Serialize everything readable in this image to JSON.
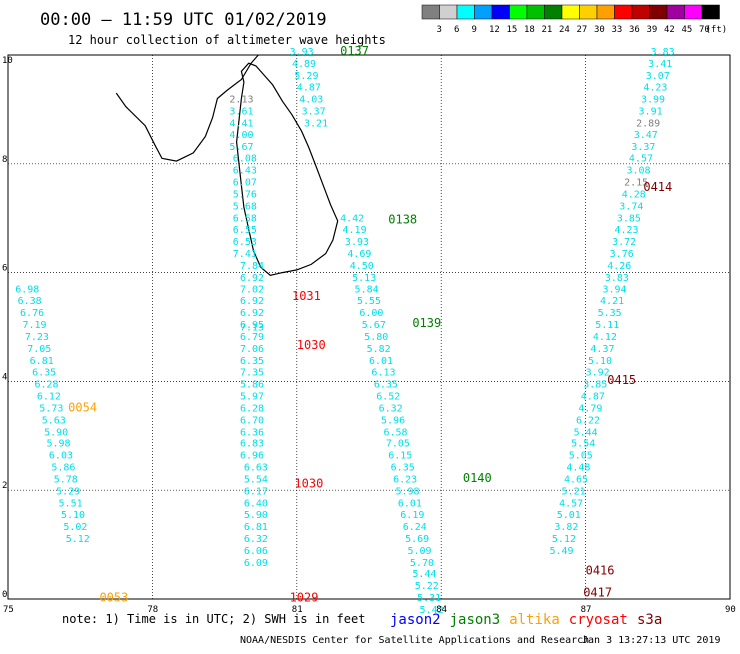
{
  "header": {
    "title": "00:00 – 11:59 UTC 01/02/2019",
    "subtitle": "12 hour collection of altimeter wave heights"
  },
  "color_scale": {
    "unit": "(ft)",
    "bins": [
      {
        "label": "",
        "color": "#808080"
      },
      {
        "label": "3",
        "color": "#d0d0d0"
      },
      {
        "label": "6",
        "color": "#00ffff"
      },
      {
        "label": "9",
        "color": "#00a0ff"
      },
      {
        "label": "12",
        "color": "#0000ff"
      },
      {
        "label": "15",
        "color": "#00ff00"
      },
      {
        "label": "18",
        "color": "#00c000"
      },
      {
        "label": "21",
        "color": "#008000"
      },
      {
        "label": "24",
        "color": "#ffff00"
      },
      {
        "label": "27",
        "color": "#ffd000"
      },
      {
        "label": "30",
        "color": "#ffa000"
      },
      {
        "label": "33",
        "color": "#ff0000"
      },
      {
        "label": "36",
        "color": "#c00000"
      },
      {
        "label": "39",
        "color": "#800000"
      },
      {
        "label": "42",
        "color": "#a000a0"
      },
      {
        "label": "45",
        "color": "#ff00ff"
      },
      {
        "label": "70",
        "color": "#000000"
      }
    ]
  },
  "axes": {
    "x_ticks": [
      "75",
      "78",
      "81",
      "84",
      "87",
      "90"
    ],
    "y_ticks": [
      "0",
      "2",
      "4",
      "6",
      "8",
      "10"
    ],
    "lon_range": [
      75,
      90
    ],
    "lat_range": [
      0,
      10
    ]
  },
  "colors": {
    "cyan": "#00e0e8",
    "grey": "#808080",
    "jason2": "#0000ff",
    "jason3": "#008000",
    "altika": "#ffa000",
    "cryosat": "#ff0000",
    "s3a": "#800000"
  },
  "passes": [
    {
      "label": "0137",
      "lon": 81.9,
      "lat": 10.0,
      "sat": "jason3"
    },
    {
      "label": "0138",
      "lon": 82.9,
      "lat": 6.9,
      "sat": "jason3"
    },
    {
      "label": "0139",
      "lon": 83.4,
      "lat": 5.0,
      "sat": "jason3"
    },
    {
      "label": "0140",
      "lon": 84.45,
      "lat": 2.15,
      "sat": "jason3"
    },
    {
      "label": "1031",
      "lon": 80.9,
      "lat": 5.5,
      "sat": "cryosat"
    },
    {
      "label": "1030",
      "lon": 81.0,
      "lat": 4.6,
      "sat": "cryosat"
    },
    {
      "label": "1030",
      "lon": 80.95,
      "lat": 2.05,
      "sat": "cryosat"
    },
    {
      "label": "1029",
      "lon": 80.85,
      "lat": -0.05,
      "sat": "cryosat"
    },
    {
      "label": "0054",
      "lon": 76.25,
      "lat": 3.45,
      "sat": "altika"
    },
    {
      "label": "0053",
      "lon": 76.9,
      "lat": -0.05,
      "sat": "altika"
    },
    {
      "label": "0414",
      "lon": 88.2,
      "lat": 7.5,
      "sat": "s3a"
    },
    {
      "label": "0415",
      "lon": 87.45,
      "lat": 3.95,
      "sat": "s3a"
    },
    {
      "label": "0416",
      "lon": 87.0,
      "lat": 0.45,
      "sat": "s3a"
    },
    {
      "label": "0417",
      "lon": 86.95,
      "lat": 0.05,
      "sat": "s3a"
    }
  ],
  "tracks": [
    {
      "name": "track-0137",
      "values": [
        {
          "v": "3.93",
          "lon": 80.85,
          "lat": 10.0
        },
        {
          "v": "4.89",
          "lon": 80.9,
          "lat": 9.78
        },
        {
          "v": "5.29",
          "lon": 80.95,
          "lat": 9.56
        },
        {
          "v": "4.87",
          "lon": 81.0,
          "lat": 9.35
        },
        {
          "v": "4.03",
          "lon": 81.05,
          "lat": 9.13
        },
        {
          "v": "3.37",
          "lon": 81.1,
          "lat": 8.91
        },
        {
          "v": "3.21",
          "lon": 81.15,
          "lat": 8.69
        }
      ]
    },
    {
      "name": "track-1030-north",
      "values": [
        {
          "v": "2.13",
          "lon": 79.6,
          "lat": 9.13,
          "c": "grey"
        },
        {
          "v": "3.61",
          "lon": 79.6,
          "lat": 8.91
        },
        {
          "v": "4.41",
          "lon": 79.6,
          "lat": 8.69
        },
        {
          "v": "4.00",
          "lon": 79.6,
          "lat": 8.47
        },
        {
          "v": "5.67",
          "lon": 79.6,
          "lat": 8.25
        },
        {
          "v": "6.08",
          "lon": 79.67,
          "lat": 8.04
        },
        {
          "v": "6.43",
          "lon": 79.67,
          "lat": 7.82
        },
        {
          "v": "6.07",
          "lon": 79.67,
          "lat": 7.6
        },
        {
          "v": "5.76",
          "lon": 79.67,
          "lat": 7.38
        },
        {
          "v": "5.68",
          "lon": 79.67,
          "lat": 7.16
        },
        {
          "v": "6.58",
          "lon": 79.67,
          "lat": 6.94
        },
        {
          "v": "6.55",
          "lon": 79.67,
          "lat": 6.73
        },
        {
          "v": "6.53",
          "lon": 79.67,
          "lat": 6.51
        },
        {
          "v": "7.41",
          "lon": 79.67,
          "lat": 6.29
        },
        {
          "v": "7.84",
          "lon": 79.82,
          "lat": 6.07
        },
        {
          "v": "6.92",
          "lon": 79.82,
          "lat": 5.85
        },
        {
          "v": "7.02",
          "lon": 79.82,
          "lat": 5.63
        },
        {
          "v": "6.92",
          "lon": 79.82,
          "lat": 5.42
        },
        {
          "v": "6.92",
          "lon": 79.82,
          "lat": 5.2
        },
        {
          "v": "6.95",
          "lon": 79.82,
          "lat": 4.98
        },
        {
          "v": "7.13",
          "lon": 79.82,
          "lat": 4.94
        },
        {
          "v": "6.79",
          "lon": 79.82,
          "lat": 4.76
        },
        {
          "v": "7.06",
          "lon": 79.82,
          "lat": 4.54
        },
        {
          "v": "6.35",
          "lon": 79.82,
          "lat": 4.32
        },
        {
          "v": "7.35",
          "lon": 79.82,
          "lat": 4.11
        },
        {
          "v": "5.86",
          "lon": 79.82,
          "lat": 3.89
        },
        {
          "v": "5.97",
          "lon": 79.82,
          "lat": 3.67
        },
        {
          "v": "6.28",
          "lon": 79.82,
          "lat": 3.45
        },
        {
          "v": "6.70",
          "lon": 79.82,
          "lat": 3.23
        },
        {
          "v": "6.36",
          "lon": 79.82,
          "lat": 3.01
        },
        {
          "v": "6.83",
          "lon": 79.82,
          "lat": 2.8
        },
        {
          "v": "6.96",
          "lon": 79.82,
          "lat": 2.58
        },
        {
          "v": "6.63",
          "lon": 79.9,
          "lat": 2.36
        },
        {
          "v": "5.54",
          "lon": 79.9,
          "lat": 2.14
        },
        {
          "v": "6.17",
          "lon": 79.9,
          "lat": 1.92
        },
        {
          "v": "6.40",
          "lon": 79.9,
          "lat": 1.7
        },
        {
          "v": "5.90",
          "lon": 79.9,
          "lat": 1.49
        },
        {
          "v": "6.81",
          "lon": 79.9,
          "lat": 1.27
        },
        {
          "v": "6.32",
          "lon": 79.9,
          "lat": 1.05
        },
        {
          "v": "6.06",
          "lon": 79.9,
          "lat": 0.83
        },
        {
          "v": "6.09",
          "lon": 79.9,
          "lat": 0.61
        }
      ]
    },
    {
      "name": "track-0054",
      "values": [
        {
          "v": "6.98",
          "lon": 75.15,
          "lat": 5.63
        },
        {
          "v": "6.38",
          "lon": 75.2,
          "lat": 5.42
        },
        {
          "v": "6.76",
          "lon": 75.25,
          "lat": 5.2
        },
        {
          "v": "7.19",
          "lon": 75.3,
          "lat": 4.98
        },
        {
          "v": "7.23",
          "lon": 75.35,
          "lat": 4.76
        },
        {
          "v": "7.05",
          "lon": 75.4,
          "lat": 4.54
        },
        {
          "v": "6.81",
          "lon": 75.45,
          "lat": 4.32
        },
        {
          "v": "6.35",
          "lon": 75.5,
          "lat": 4.11
        },
        {
          "v": "6.28",
          "lon": 75.55,
          "lat": 3.89
        },
        {
          "v": "6.12",
          "lon": 75.6,
          "lat": 3.67
        },
        {
          "v": "5.73",
          "lon": 75.65,
          "lat": 3.45
        },
        {
          "v": "5.63",
          "lon": 75.7,
          "lat": 3.23
        },
        {
          "v": "5.90",
          "lon": 75.75,
          "lat": 3.01
        },
        {
          "v": "5.98",
          "lon": 75.8,
          "lat": 2.8
        },
        {
          "v": "6.03",
          "lon": 75.85,
          "lat": 2.58
        },
        {
          "v": "5.86",
          "lon": 75.9,
          "lat": 2.36
        },
        {
          "v": "5.78",
          "lon": 75.95,
          "lat": 2.14
        },
        {
          "v": "5.29",
          "lon": 76.0,
          "lat": 1.92
        },
        {
          "v": "5.51",
          "lon": 76.05,
          "lat": 1.7
        },
        {
          "v": "5.10",
          "lon": 76.1,
          "lat": 1.49
        },
        {
          "v": "5.02",
          "lon": 76.15,
          "lat": 1.27
        },
        {
          "v": "5.12",
          "lon": 76.2,
          "lat": 1.05
        }
      ]
    },
    {
      "name": "track-0138-0140",
      "values": [
        {
          "v": "4.42",
          "lon": 81.9,
          "lat": 6.94
        },
        {
          "v": "4.19",
          "lon": 81.95,
          "lat": 6.73
        },
        {
          "v": "3.93",
          "lon": 82.0,
          "lat": 6.51
        },
        {
          "v": "4.69",
          "lon": 82.05,
          "lat": 6.29
        },
        {
          "v": "4.50",
          "lon": 82.1,
          "lat": 6.07
        },
        {
          "v": "5.13",
          "lon": 82.15,
          "lat": 5.85
        },
        {
          "v": "5.84",
          "lon": 82.2,
          "lat": 5.63
        },
        {
          "v": "5.55",
          "lon": 82.25,
          "lat": 5.42
        },
        {
          "v": "6.00",
          "lon": 82.3,
          "lat": 5.2
        },
        {
          "v": "5.67",
          "lon": 82.35,
          "lat": 4.98
        },
        {
          "v": "5.80",
          "lon": 82.4,
          "lat": 4.76
        },
        {
          "v": "5.82",
          "lon": 82.45,
          "lat": 4.54
        },
        {
          "v": "6.01",
          "lon": 82.5,
          "lat": 4.32
        },
        {
          "v": "6.13",
          "lon": 82.55,
          "lat": 4.11
        },
        {
          "v": "6.35",
          "lon": 82.6,
          "lat": 3.89
        },
        {
          "v": "6.52",
          "lon": 82.65,
          "lat": 3.67
        },
        {
          "v": "6.32",
          "lon": 82.7,
          "lat": 3.45
        },
        {
          "v": "5.96",
          "lon": 82.75,
          "lat": 3.23
        },
        {
          "v": "6.58",
          "lon": 82.8,
          "lat": 3.01
        },
        {
          "v": "7.05",
          "lon": 82.85,
          "lat": 2.8
        },
        {
          "v": "6.15",
          "lon": 82.9,
          "lat": 2.58
        },
        {
          "v": "6.35",
          "lon": 82.95,
          "lat": 2.36
        },
        {
          "v": "6.23",
          "lon": 83.0,
          "lat": 2.14
        },
        {
          "v": "5.98",
          "lon": 83.05,
          "lat": 1.92
        },
        {
          "v": "6.01",
          "lon": 83.1,
          "lat": 1.7
        },
        {
          "v": "6.19",
          "lon": 83.15,
          "lat": 1.49
        },
        {
          "v": "6.24",
          "lon": 83.2,
          "lat": 1.27
        },
        {
          "v": "5.69",
          "lon": 83.25,
          "lat": 1.05
        },
        {
          "v": "5.09",
          "lon": 83.3,
          "lat": 0.83
        },
        {
          "v": "5.70",
          "lon": 83.35,
          "lat": 0.61
        },
        {
          "v": "5.44",
          "lon": 83.4,
          "lat": 0.4
        },
        {
          "v": "5.22",
          "lon": 83.45,
          "lat": 0.18
        },
        {
          "v": "5.31",
          "lon": 83.5,
          "lat": -0.04
        },
        {
          "v": "5.42",
          "lon": 83.55,
          "lat": -0.26
        }
      ]
    },
    {
      "name": "track-0415",
      "values": [
        {
          "v": "3.83",
          "lon": 88.35,
          "lat": 10.0
        },
        {
          "v": "3.41",
          "lon": 88.3,
          "lat": 9.78
        },
        {
          "v": "3.07",
          "lon": 88.25,
          "lat": 9.56
        },
        {
          "v": "4.23",
          "lon": 88.2,
          "lat": 9.35
        },
        {
          "v": "3.99",
          "lon": 88.15,
          "lat": 9.13
        },
        {
          "v": "3.91",
          "lon": 88.1,
          "lat": 8.91
        },
        {
          "v": "2.89",
          "lon": 88.05,
          "lat": 8.69,
          "c": "grey"
        },
        {
          "v": "3.47",
          "lon": 88.0,
          "lat": 8.47
        },
        {
          "v": "3.37",
          "lon": 87.95,
          "lat": 8.25
        },
        {
          "v": "4.57",
          "lon": 87.9,
          "lat": 8.04
        },
        {
          "v": "3.08",
          "lon": 87.85,
          "lat": 7.82
        },
        {
          "v": "2.15",
          "lon": 87.8,
          "lat": 7.6,
          "c": "grey"
        },
        {
          "v": "4.28",
          "lon": 87.75,
          "lat": 7.38
        },
        {
          "v": "3.74",
          "lon": 87.7,
          "lat": 7.16
        },
        {
          "v": "3.85",
          "lon": 87.65,
          "lat": 6.94
        },
        {
          "v": "4.23",
          "lon": 87.6,
          "lat": 6.73
        },
        {
          "v": "3.72",
          "lon": 87.55,
          "lat": 6.51
        },
        {
          "v": "3.76",
          "lon": 87.5,
          "lat": 6.29
        },
        {
          "v": "4.26",
          "lon": 87.45,
          "lat": 6.07
        },
        {
          "v": "3.83",
          "lon": 87.4,
          "lat": 5.85
        },
        {
          "v": "3.94",
          "lon": 87.35,
          "lat": 5.63
        },
        {
          "v": "4.21",
          "lon": 87.3,
          "lat": 5.42
        },
        {
          "v": "5.35",
          "lon": 87.25,
          "lat": 5.2
        },
        {
          "v": "5.11",
          "lon": 87.2,
          "lat": 4.98
        },
        {
          "v": "4.12",
          "lon": 87.15,
          "lat": 4.76
        },
        {
          "v": "4.37",
          "lon": 87.1,
          "lat": 4.54
        },
        {
          "v": "5.10",
          "lon": 87.05,
          "lat": 4.32
        },
        {
          "v": "3.92",
          "lon": 87.0,
          "lat": 4.11
        },
        {
          "v": "3.85",
          "lon": 86.95,
          "lat": 3.89
        },
        {
          "v": "4.87",
          "lon": 86.9,
          "lat": 3.67
        },
        {
          "v": "4.79",
          "lon": 86.85,
          "lat": 3.45
        },
        {
          "v": "6.22",
          "lon": 86.8,
          "lat": 3.23
        },
        {
          "v": "5.44",
          "lon": 86.75,
          "lat": 3.01
        },
        {
          "v": "5.54",
          "lon": 86.7,
          "lat": 2.8
        },
        {
          "v": "5.05",
          "lon": 86.65,
          "lat": 2.58
        },
        {
          "v": "4.48",
          "lon": 86.6,
          "lat": 2.36
        },
        {
          "v": "4.65",
          "lon": 86.55,
          "lat": 2.14
        },
        {
          "v": "5.21",
          "lon": 86.5,
          "lat": 1.92
        },
        {
          "v": "4.57",
          "lon": 86.45,
          "lat": 1.7
        },
        {
          "v": "5.01",
          "lon": 86.4,
          "lat": 1.49
        },
        {
          "v": "3.82",
          "lon": 86.35,
          "lat": 1.27
        },
        {
          "v": "5.12",
          "lon": 86.3,
          "lat": 1.05
        },
        {
          "v": "5.49",
          "lon": 86.25,
          "lat": 0.83
        }
      ]
    }
  ],
  "footer": {
    "note": "note: 1) Time is in UTC; 2) SWH is in feet",
    "credit": "NOAA/NESDIS Center for Satellite Applications and Research",
    "timestamp": "Jan  3 13:27:13 UTC 2019",
    "legend": [
      {
        "label": "jason2",
        "key": "jason2"
      },
      {
        "label": "jason3",
        "key": "jason3"
      },
      {
        "label": "altika",
        "key": "altika"
      },
      {
        "label": "cryosat",
        "key": "cryosat"
      },
      {
        "label": "s3a",
        "key": "s3a"
      }
    ]
  }
}
